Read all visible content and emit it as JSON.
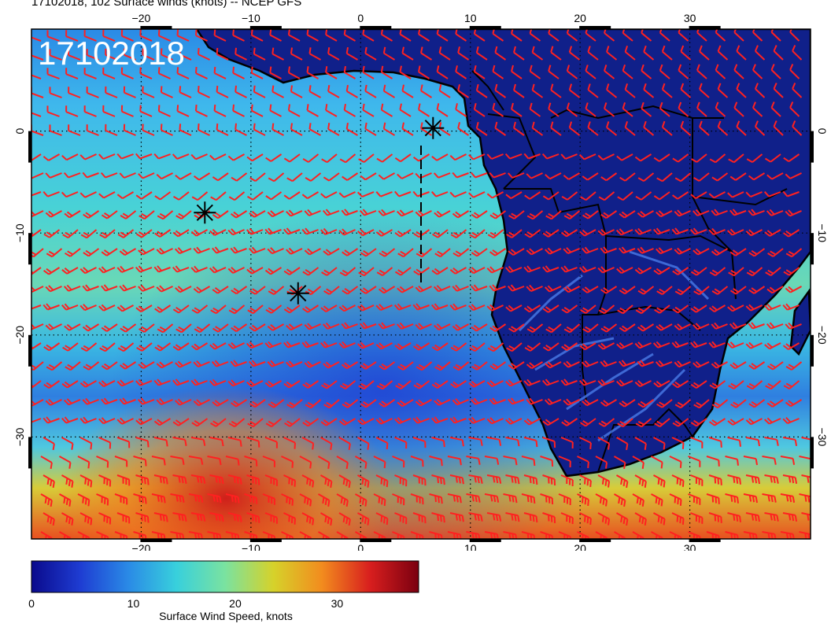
{
  "header": {
    "title": "17102018, 102 Surface winds (knots) -- NCEP GFS",
    "date_stamp": "17102018"
  },
  "map": {
    "projection": "cylindrical",
    "lon_range": [
      -30,
      41
    ],
    "lat_range": [
      -40,
      10
    ],
    "lon_ticks": [
      {
        "value": -20,
        "label": "−20"
      },
      {
        "value": -10,
        "label": "−10"
      },
      {
        "value": 0,
        "label": "0"
      },
      {
        "value": 10,
        "label": "10"
      },
      {
        "value": 20,
        "label": "20"
      },
      {
        "value": 30,
        "label": "30"
      }
    ],
    "lat_ticks": [
      {
        "value": 0,
        "label": "0"
      },
      {
        "value": -10,
        "label": "−10"
      },
      {
        "value": -20,
        "label": "−20"
      },
      {
        "value": -30,
        "label": "−30"
      }
    ],
    "gridlines": "dotted",
    "markers": [
      {
        "name": "asterisk-marker-1",
        "lon": 6.6,
        "lat": 0.3
      },
      {
        "name": "asterisk-marker-2",
        "lon": -14.2,
        "lat": -8.0
      },
      {
        "name": "asterisk-marker-3",
        "lon": -5.7,
        "lat": -15.9
      }
    ],
    "barb_color": "#ff2020",
    "land_color": "#101a6e",
    "coast_color": "#000000"
  },
  "colorbar": {
    "title": "Surface Wind Speed, knots",
    "range": [
      0,
      38
    ],
    "ticks": [
      {
        "value": 0,
        "label": "0"
      },
      {
        "value": 10,
        "label": "10"
      },
      {
        "value": 20,
        "label": "20"
      },
      {
        "value": 30,
        "label": "30"
      }
    ],
    "colors": [
      "#0a0a8c",
      "#1e3cd2",
      "#2a8ae6",
      "#38d0dc",
      "#7ae2a0",
      "#d6d22a",
      "#f28c1e",
      "#d81e1e",
      "#7a0010"
    ]
  }
}
